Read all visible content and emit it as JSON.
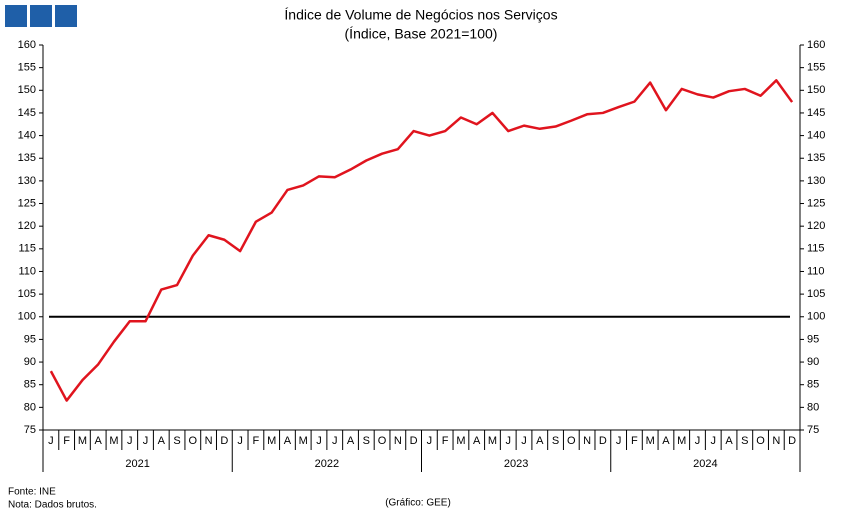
{
  "chart_data": {
    "type": "line",
    "title": "Índice de Volume de Negócios nos Serviços",
    "subtitle": "(Índice, Base 2021=100)",
    "categories": [
      "J",
      "F",
      "M",
      "A",
      "M",
      "J",
      "J",
      "A",
      "S",
      "O",
      "N",
      "D",
      "J",
      "F",
      "M",
      "A",
      "M",
      "J",
      "J",
      "A",
      "S",
      "O",
      "N",
      "D",
      "J",
      "F",
      "M",
      "A",
      "M",
      "J",
      "J",
      "A",
      "S",
      "O",
      "N",
      "D",
      "J",
      "F",
      "M",
      "A",
      "M",
      "J",
      "J",
      "A",
      "S",
      "O",
      "N",
      "D"
    ],
    "years": [
      "2021",
      "2022",
      "2023",
      "2024"
    ],
    "values": [
      88,
      81.5,
      86,
      89.5,
      94.5,
      99,
      99,
      106,
      107,
      113.5,
      118,
      117,
      114.5,
      121,
      123,
      128,
      129,
      131,
      130.8,
      132.5,
      134.5,
      136,
      137,
      141,
      140,
      141,
      144,
      142.5,
      145,
      141,
      142.2,
      141.5,
      142,
      143.3,
      144.7,
      145,
      146.3,
      147.5,
      151.7,
      145.6,
      150.3,
      149.1,
      148.4,
      149.8,
      150.3,
      148.8,
      152.2,
      147.4
    ],
    "color": "#e0141e",
    "reference_line": 100,
    "ylim": [
      75,
      160
    ],
    "yticks": [
      75,
      80,
      85,
      90,
      95,
      100,
      105,
      110,
      115,
      120,
      125,
      130,
      135,
      140,
      145,
      150,
      155,
      160
    ],
    "grid": false,
    "source": "Fonte: INE",
    "note": "Nota: Dados brutos.",
    "credit": "(Gráfico: GEE)"
  }
}
